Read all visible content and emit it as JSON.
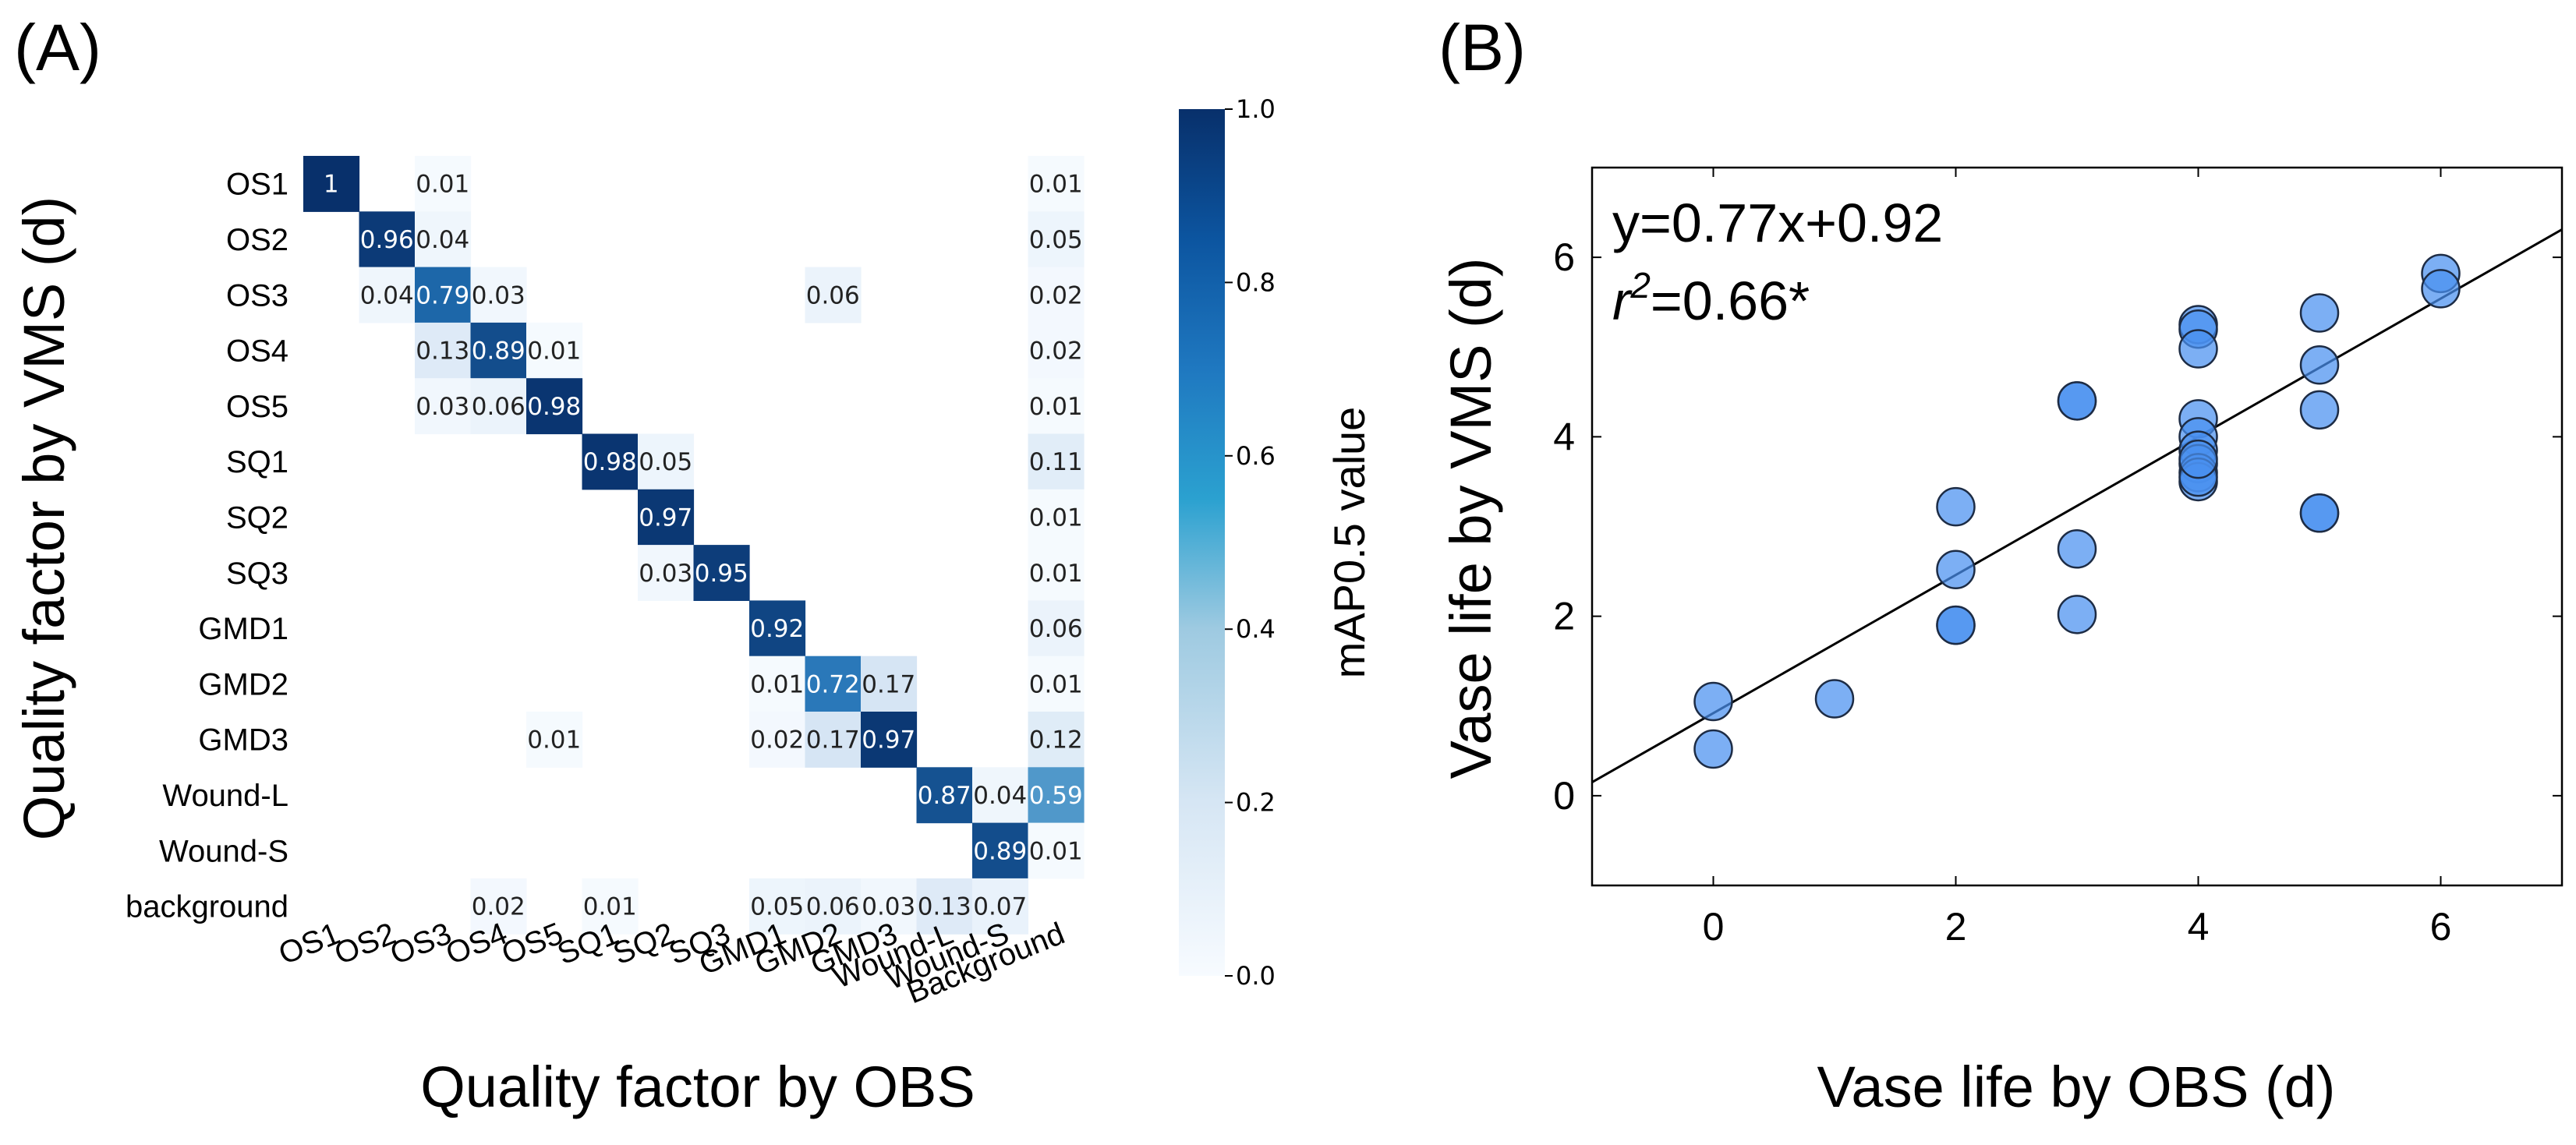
{
  "chart_data": [
    {
      "type": "heatmap",
      "panel_label": "(A)",
      "title": "",
      "ylabel": "Quality factor by VMS (d)",
      "xlabel": "Quality factor by OBS",
      "row_labels": [
        "OS1",
        "OS2",
        "OS3",
        "OS4",
        "OS5",
        "SQ1",
        "SQ2",
        "SQ3",
        "GMD1",
        "GMD2",
        "GMD3",
        "Wound-L",
        "Wound-S",
        "background"
      ],
      "col_labels": [
        "OS1",
        "OS2",
        "OS3",
        "OS4",
        "OS5",
        "SQ1",
        "SQ2",
        "SQ3",
        "GMD1",
        "GMD2",
        "GMD3",
        "Wound-L",
        "Wound-S",
        "Background"
      ],
      "cells": [
        {
          "r": 0,
          "c": 0,
          "v": 1,
          "label": "1"
        },
        {
          "r": 0,
          "c": 2,
          "v": 0.01,
          "label": "0.01"
        },
        {
          "r": 0,
          "c": 13,
          "v": 0.01,
          "label": "0.01"
        },
        {
          "r": 1,
          "c": 1,
          "v": 0.96,
          "label": "0.96"
        },
        {
          "r": 1,
          "c": 2,
          "v": 0.04,
          "label": "0.04"
        },
        {
          "r": 1,
          "c": 13,
          "v": 0.05,
          "label": "0.05"
        },
        {
          "r": 2,
          "c": 1,
          "v": 0.04,
          "label": "0.04"
        },
        {
          "r": 2,
          "c": 2,
          "v": 0.79,
          "label": "0.79"
        },
        {
          "r": 2,
          "c": 3,
          "v": 0.03,
          "label": "0.03"
        },
        {
          "r": 2,
          "c": 9,
          "v": 0.06,
          "label": "0.06"
        },
        {
          "r": 2,
          "c": 13,
          "v": 0.02,
          "label": "0.02"
        },
        {
          "r": 3,
          "c": 2,
          "v": 0.13,
          "label": "0.13"
        },
        {
          "r": 3,
          "c": 3,
          "v": 0.89,
          "label": "0.89"
        },
        {
          "r": 3,
          "c": 4,
          "v": 0.01,
          "label": "0.01"
        },
        {
          "r": 3,
          "c": 13,
          "v": 0.02,
          "label": "0.02"
        },
        {
          "r": 4,
          "c": 2,
          "v": 0.03,
          "label": "0.03"
        },
        {
          "r": 4,
          "c": 3,
          "v": 0.06,
          "label": "0.06"
        },
        {
          "r": 4,
          "c": 4,
          "v": 0.98,
          "label": "0.98"
        },
        {
          "r": 4,
          "c": 13,
          "v": 0.01,
          "label": "0.01"
        },
        {
          "r": 5,
          "c": 5,
          "v": 0.98,
          "label": "0.98"
        },
        {
          "r": 5,
          "c": 6,
          "v": 0.05,
          "label": "0.05"
        },
        {
          "r": 5,
          "c": 13,
          "v": 0.11,
          "label": "0.11"
        },
        {
          "r": 6,
          "c": 6,
          "v": 0.97,
          "label": "0.97"
        },
        {
          "r": 6,
          "c": 13,
          "v": 0.01,
          "label": "0.01"
        },
        {
          "r": 7,
          "c": 6,
          "v": 0.03,
          "label": "0.03"
        },
        {
          "r": 7,
          "c": 7,
          "v": 0.95,
          "label": "0.95"
        },
        {
          "r": 7,
          "c": 13,
          "v": 0.01,
          "label": "0.01"
        },
        {
          "r": 8,
          "c": 8,
          "v": 0.92,
          "label": "0.92"
        },
        {
          "r": 8,
          "c": 13,
          "v": 0.06,
          "label": "0.06"
        },
        {
          "r": 9,
          "c": 8,
          "v": 0.01,
          "label": "0.01"
        },
        {
          "r": 9,
          "c": 9,
          "v": 0.72,
          "label": "0.72"
        },
        {
          "r": 9,
          "c": 10,
          "v": 0.17,
          "label": "0.17"
        },
        {
          "r": 9,
          "c": 13,
          "v": 0.01,
          "label": "0.01"
        },
        {
          "r": 10,
          "c": 4,
          "v": 0.01,
          "label": "0.01"
        },
        {
          "r": 10,
          "c": 8,
          "v": 0.02,
          "label": "0.02"
        },
        {
          "r": 10,
          "c": 9,
          "v": 0.17,
          "label": "0.17"
        },
        {
          "r": 10,
          "c": 10,
          "v": 0.97,
          "label": "0.97"
        },
        {
          "r": 10,
          "c": 13,
          "v": 0.12,
          "label": "0.12"
        },
        {
          "r": 11,
          "c": 11,
          "v": 0.87,
          "label": "0.87"
        },
        {
          "r": 11,
          "c": 12,
          "v": 0.04,
          "label": "0.04"
        },
        {
          "r": 11,
          "c": 13,
          "v": 0.59,
          "label": "0.59"
        },
        {
          "r": 12,
          "c": 12,
          "v": 0.89,
          "label": "0.89"
        },
        {
          "r": 12,
          "c": 13,
          "v": 0.01,
          "label": "0.01"
        },
        {
          "r": 13,
          "c": 3,
          "v": 0.02,
          "label": "0.02"
        },
        {
          "r": 13,
          "c": 5,
          "v": 0.01,
          "label": "0.01"
        },
        {
          "r": 13,
          "c": 8,
          "v": 0.05,
          "label": "0.05"
        },
        {
          "r": 13,
          "c": 9,
          "v": 0.06,
          "label": "0.06"
        },
        {
          "r": 13,
          "c": 10,
          "v": 0.03,
          "label": "0.03"
        },
        {
          "r": 13,
          "c": 11,
          "v": 0.13,
          "label": "0.13"
        },
        {
          "r": 13,
          "c": 12,
          "v": 0.07,
          "label": "0.07"
        }
      ],
      "colorbar": {
        "label": "mAP0.5 value",
        "ticks": [
          "0.0",
          "0.2",
          "0.4",
          "0.6",
          "0.8",
          "1.0"
        ],
        "range": [
          0,
          1
        ],
        "colors": [
          "#f7fbff",
          "#c6dbef",
          "#6baed6",
          "#2171b5",
          "#08306b"
        ]
      }
    },
    {
      "type": "scatter",
      "panel_label": "(B)",
      "title": "",
      "xlabel": "Vase life by OBS (d)",
      "ylabel": "Vase life by VMS (d)",
      "xlim": [
        -1,
        7
      ],
      "ylim": [
        -1,
        7
      ],
      "xticks": [
        "0",
        "2",
        "4",
        "6"
      ],
      "yticks": [
        "0",
        "2",
        "4",
        "6"
      ],
      "equation": "y=0.77x+0.92",
      "r2_base": "r",
      "r2_exp": "2",
      "r2_value": "=0.66*",
      "fit": {
        "slope": 0.77,
        "intercept": 0.92
      },
      "point_color": "#4a90f0",
      "x": [
        0,
        0,
        1,
        2,
        2,
        2,
        2,
        3,
        3,
        3,
        3,
        4,
        4,
        4,
        4,
        4,
        4,
        4,
        4,
        4,
        4,
        4,
        5,
        5,
        5,
        5,
        5,
        6,
        6
      ],
      "y": [
        1.05,
        0.52,
        1.08,
        3.22,
        2.52,
        1.9,
        1.9,
        4.4,
        4.4,
        2.75,
        2.02,
        5.25,
        5.2,
        4.98,
        4.2,
        4.0,
        3.85,
        3.7,
        3.6,
        3.5,
        3.55,
        3.75,
        5.38,
        4.8,
        4.3,
        3.15,
        3.15,
        5.82,
        5.65
      ]
    }
  ]
}
